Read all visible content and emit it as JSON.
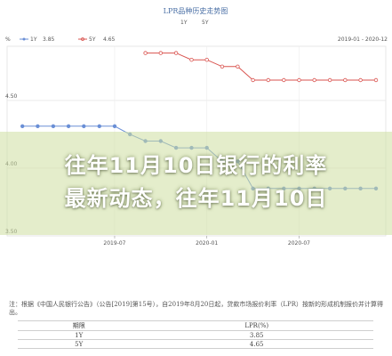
{
  "chart_data": {
    "type": "line",
    "title": "LPR品种历史走势图",
    "legend_top": [
      "1Y",
      "5Y"
    ],
    "legend": [
      {
        "name": "1Y",
        "value": "3.85",
        "color": "#6a8fd6"
      },
      {
        "name": "5Y",
        "value": "4.65",
        "color": "#d9534f"
      }
    ],
    "y_unit": "%",
    "date_range": "2019-01 - 2020-12",
    "ylim": [
      3.5,
      4.9
    ],
    "y_ticks": [
      "4.50",
      "4.00",
      "3.50"
    ],
    "y_tick_values": [
      4.5,
      4.0,
      3.5
    ],
    "x_ticks": [
      "2019-07",
      "2020-01",
      "2020-07"
    ],
    "x_tick_values": [
      2019.5,
      2020.0,
      2020.5
    ],
    "grid": true,
    "series": [
      {
        "name": "1Y",
        "color": "#6a8fd6",
        "x": [
          2019.0,
          2019.083,
          2019.167,
          2019.25,
          2019.333,
          2019.417,
          2019.5,
          2019.583,
          2019.667,
          2019.75,
          2019.833,
          2019.917,
          2020.0,
          2020.083,
          2020.167,
          2020.25,
          2020.333,
          2020.417,
          2020.5,
          2020.583,
          2020.667,
          2020.75,
          2020.833,
          2020.917
        ],
        "values": [
          4.31,
          4.31,
          4.31,
          4.31,
          4.31,
          4.31,
          4.31,
          4.25,
          4.2,
          4.2,
          4.15,
          4.15,
          4.15,
          4.05,
          4.05,
          3.85,
          3.85,
          3.85,
          3.85,
          3.85,
          3.85,
          3.85,
          3.85,
          3.85
        ]
      },
      {
        "name": "5Y",
        "color": "#d9534f",
        "x": [
          2019.667,
          2019.75,
          2019.833,
          2019.917,
          2020.0,
          2020.083,
          2020.167,
          2020.25,
          2020.333,
          2020.417,
          2020.5,
          2020.583,
          2020.667,
          2020.75,
          2020.833,
          2020.917
        ],
        "values": [
          4.85,
          4.85,
          4.85,
          4.8,
          4.8,
          4.75,
          4.75,
          4.65,
          4.65,
          4.65,
          4.65,
          4.65,
          4.65,
          4.65,
          4.65,
          4.65
        ]
      }
    ]
  },
  "banner": {
    "line1": "往年11月10日银行的利率",
    "line2": "最新动态，往年11月10日"
  },
  "note": "注：根据《中国人民银行公告》（公告[2019]第15号），自2019年8月20日起，贷款市场报价利率（LPR）按新的形成机制报价并计算得出。",
  "table": {
    "headers": [
      "期限",
      "LPR(%)"
    ],
    "rows": [
      [
        "1Y",
        "3.85"
      ],
      [
        "5Y",
        "4.65"
      ]
    ]
  }
}
